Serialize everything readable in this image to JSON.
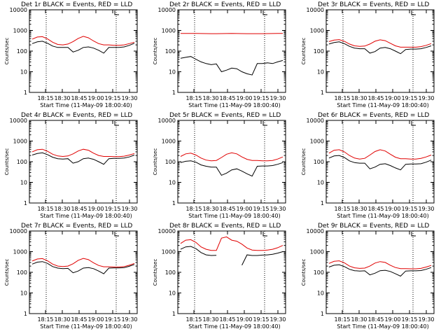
{
  "colors": {
    "events": "#000000",
    "lld": "#e00000",
    "axes": "#000000",
    "background": "#ffffff"
  },
  "chart_data": [
    {
      "type": "line",
      "title": "Det 1r BLACK = Events, RED = LLD",
      "xlabel": "Start Time (11-May-09 18:00:40)",
      "ylabel": "Counts/sec",
      "ylog": true,
      "ylim": [
        1,
        10000
      ],
      "yticks": [
        "1",
        "10",
        "100",
        "1000",
        "10000"
      ],
      "xticks": [
        "18:15",
        "18:30",
        "18:45",
        "19:00",
        "19:15",
        "19:30"
      ],
      "series": [
        {
          "name": "Events",
          "x": [
            0,
            5,
            10,
            15,
            20,
            25,
            30,
            35,
            40,
            45,
            50,
            55,
            60,
            65,
            70,
            75,
            80,
            85,
            90,
            95,
            100
          ],
          "values": [
            230,
            280,
            300,
            240,
            175,
            150,
            150,
            150,
            90,
            110,
            150,
            160,
            140,
            110,
            80,
            150,
            150,
            150,
            160,
            190,
            240
          ]
        },
        {
          "name": "LLD",
          "x": [
            0,
            5,
            10,
            15,
            20,
            25,
            30,
            35,
            40,
            45,
            50,
            55,
            60,
            65,
            70,
            75,
            80,
            85,
            90,
            95,
            100
          ],
          "values": [
            380,
            480,
            500,
            390,
            270,
            210,
            200,
            220,
            290,
            410,
            520,
            440,
            310,
            230,
            200,
            200,
            190,
            190,
            200,
            230,
            270
          ]
        }
      ]
    },
    {
      "type": "line",
      "title": "Det 2r BLACK = Events, RED = LLD",
      "xlabel": "Start Time (11-May-09 18:00:40)",
      "ylabel": "Counts/sec",
      "ylog": true,
      "ylim": [
        1,
        10000
      ],
      "yticks": [
        "1",
        "10",
        "100",
        "1000",
        "10000"
      ],
      "xticks": [
        "18:15",
        "18:30",
        "18:45",
        "19:00",
        "19:15",
        "19:30"
      ],
      "series": [
        {
          "name": "Events",
          "x": [
            0,
            5,
            10,
            15,
            20,
            25,
            30,
            35,
            40,
            45,
            50,
            55,
            60,
            65,
            70,
            75,
            80,
            85,
            90,
            95,
            100
          ],
          "values": [
            45,
            50,
            55,
            40,
            30,
            25,
            22,
            24,
            10,
            12,
            15,
            14,
            10,
            8,
            7,
            25,
            25,
            27,
            25,
            30,
            35
          ]
        },
        {
          "name": "LLD",
          "x": [
            0,
            5,
            10,
            15,
            20,
            25,
            30,
            35,
            40,
            45,
            50,
            55,
            60,
            65,
            70,
            75,
            80,
            85,
            90,
            95,
            100
          ],
          "values": [
            720,
            720,
            720,
            715,
            710,
            705,
            700,
            700,
            705,
            710,
            715,
            710,
            705,
            700,
            700,
            700,
            700,
            705,
            710,
            715,
            720
          ]
        }
      ]
    },
    {
      "type": "line",
      "title": "Det 3r BLACK = Events, RED = LLD",
      "xlabel": "Start Time (11-May-09 18:00:40)",
      "ylabel": "Counts/sec",
      "ylog": true,
      "ylim": [
        1,
        10000
      ],
      "yticks": [
        "1",
        "10",
        "100",
        "1000",
        "10000"
      ],
      "xticks": [
        "18:15",
        "18:30",
        "18:45",
        "19:00",
        "19:15",
        "19:30"
      ],
      "series": [
        {
          "name": "Events",
          "x": [
            0,
            5,
            10,
            15,
            20,
            25,
            30,
            35,
            40,
            45,
            50,
            55,
            60,
            65,
            70,
            75,
            80,
            85,
            90,
            95,
            100
          ],
          "values": [
            220,
            260,
            280,
            230,
            170,
            140,
            130,
            130,
            80,
            95,
            140,
            150,
            130,
            100,
            75,
            120,
            125,
            125,
            130,
            150,
            180
          ]
        },
        {
          "name": "LLD",
          "x": [
            0,
            5,
            10,
            15,
            20,
            25,
            30,
            35,
            40,
            45,
            50,
            55,
            60,
            65,
            70,
            75,
            80,
            85,
            90,
            95,
            100
          ],
          "values": [
            290,
            340,
            360,
            300,
            220,
            180,
            170,
            175,
            220,
            300,
            350,
            320,
            240,
            180,
            155,
            155,
            155,
            155,
            165,
            190,
            230
          ]
        }
      ]
    },
    {
      "type": "line",
      "title": "Det 4r BLACK = Events, RED = LLD",
      "xlabel": "Start Time (11-May-09 18:00:40)",
      "ylabel": "Counts/sec",
      "ylog": true,
      "ylim": [
        1,
        10000
      ],
      "yticks": [
        "1",
        "10",
        "100",
        "1000",
        "10000"
      ],
      "xticks": [
        "18:15",
        "18:30",
        "18:45",
        "19:00",
        "19:15",
        "19:30"
      ],
      "series": [
        {
          "name": "Events",
          "x": [
            0,
            5,
            10,
            15,
            20,
            25,
            30,
            35,
            40,
            45,
            50,
            55,
            60,
            65,
            70,
            75,
            80,
            85,
            90,
            95,
            100
          ],
          "values": [
            210,
            250,
            270,
            220,
            165,
            140,
            135,
            140,
            85,
            100,
            140,
            150,
            130,
            100,
            75,
            140,
            145,
            145,
            150,
            170,
            210
          ]
        },
        {
          "name": "LLD",
          "x": [
            0,
            5,
            10,
            15,
            20,
            25,
            30,
            35,
            40,
            45,
            50,
            55,
            60,
            65,
            70,
            75,
            80,
            85,
            90,
            95,
            100
          ],
          "values": [
            300,
            380,
            400,
            320,
            230,
            190,
            180,
            190,
            240,
            330,
            400,
            360,
            260,
            200,
            180,
            180,
            175,
            175,
            185,
            210,
            250
          ]
        }
      ]
    },
    {
      "type": "line",
      "title": "Det 5r BLACK = Events, RED = LLD",
      "xlabel": "Start Time (11-May-09 18:00:40)",
      "ylabel": "Counts/sec",
      "ylog": true,
      "ylim": [
        1,
        10000
      ],
      "yticks": [
        "1",
        "10",
        "100",
        "1000",
        "10000"
      ],
      "xticks": [
        "18:15",
        "18:30",
        "18:45",
        "19:00",
        "19:15",
        "19:30"
      ],
      "series": [
        {
          "name": "Events",
          "x": [
            0,
            5,
            10,
            15,
            20,
            25,
            30,
            35,
            40,
            45,
            50,
            55,
            60,
            65,
            70,
            75,
            80,
            85,
            90,
            95,
            100
          ],
          "values": [
            90,
            105,
            110,
            95,
            70,
            60,
            55,
            55,
            22,
            28,
            40,
            45,
            35,
            26,
            20,
            60,
            62,
            62,
            65,
            75,
            90
          ]
        },
        {
          "name": "LLD",
          "x": [
            0,
            5,
            10,
            15,
            20,
            25,
            30,
            35,
            40,
            45,
            50,
            55,
            60,
            65,
            70,
            75,
            80,
            85,
            90,
            95,
            100
          ],
          "values": [
            180,
            240,
            260,
            210,
            150,
            120,
            110,
            115,
            160,
            230,
            270,
            240,
            170,
            130,
            115,
            115,
            110,
            110,
            115,
            135,
            170
          ]
        }
      ]
    },
    {
      "type": "line",
      "title": "Det 6r BLACK = Events, RED = LLD",
      "xlabel": "Start Time (11-May-09 18:00:40)",
      "ylabel": "Counts/sec",
      "ylog": true,
      "ylim": [
        1,
        10000
      ],
      "yticks": [
        "1",
        "10",
        "100",
        "1000",
        "10000"
      ],
      "xticks": [
        "18:15",
        "18:30",
        "18:45",
        "19:00",
        "19:15",
        "19:30"
      ],
      "series": [
        {
          "name": "Events",
          "x": [
            0,
            5,
            10,
            15,
            20,
            25,
            30,
            35,
            40,
            45,
            50,
            55,
            60,
            65,
            70,
            75,
            80,
            85,
            90,
            95,
            100
          ],
          "values": [
            150,
            190,
            200,
            160,
            110,
            90,
            85,
            85,
            45,
            55,
            75,
            80,
            65,
            50,
            40,
            75,
            78,
            78,
            80,
            95,
            120
          ]
        },
        {
          "name": "LLD",
          "x": [
            0,
            5,
            10,
            15,
            20,
            25,
            30,
            35,
            40,
            45,
            50,
            55,
            60,
            65,
            70,
            75,
            80,
            85,
            90,
            95,
            100
          ],
          "values": [
            260,
            360,
            380,
            300,
            200,
            150,
            135,
            145,
            210,
            310,
            380,
            330,
            230,
            165,
            140,
            140,
            135,
            135,
            145,
            170,
            210
          ]
        }
      ]
    },
    {
      "type": "line",
      "title": "Det 7r BLACK = Events, RED = LLD",
      "xlabel": "Start Time (11-May-09 18:00:40)",
      "ylabel": "Counts/sec",
      "ylog": true,
      "ylim": [
        1,
        10000
      ],
      "yticks": [
        "1",
        "10",
        "100",
        "1000",
        "10000"
      ],
      "xticks": [
        "18:15",
        "18:30",
        "18:45",
        "19:00",
        "19:15",
        "19:30"
      ],
      "series": [
        {
          "name": "Events",
          "x": [
            0,
            5,
            10,
            15,
            20,
            25,
            30,
            35,
            40,
            45,
            50,
            55,
            60,
            65,
            70,
            75,
            80,
            85,
            90,
            95,
            100
          ],
          "values": [
            250,
            310,
            330,
            270,
            190,
            160,
            150,
            155,
            95,
            115,
            160,
            170,
            150,
            115,
            85,
            160,
            162,
            162,
            168,
            195,
            240
          ]
        },
        {
          "name": "LLD",
          "x": [
            0,
            5,
            10,
            15,
            20,
            25,
            30,
            35,
            40,
            45,
            50,
            55,
            60,
            65,
            70,
            75,
            80,
            85,
            90,
            95,
            100
          ],
          "values": [
            350,
            440,
            460,
            360,
            250,
            200,
            190,
            200,
            260,
            380,
            470,
            410,
            290,
            215,
            185,
            185,
            180,
            180,
            190,
            220,
            270
          ]
        }
      ]
    },
    {
      "type": "line",
      "title": "Det 8r BLACK = Events, RED = LLD",
      "xlabel": "Start Time (11-May-09 18:00:40)",
      "ylabel": "Counts/sec",
      "ylog": true,
      "ylim": [
        1,
        10000
      ],
      "yticks": [
        "1",
        "10",
        "100",
        "1000",
        "10000"
      ],
      "xticks": [
        "18:15",
        "18:30",
        "18:45",
        "19:00",
        "19:15",
        "19:30"
      ],
      "series": [
        {
          "name": "Events",
          "x": [
            0,
            5,
            10,
            15,
            20,
            25,
            30,
            35,
            40,
            45,
            50,
            55,
            60,
            65,
            70,
            75,
            80,
            85,
            90,
            95,
            100
          ],
          "values": [
            1300,
            1700,
            1800,
            1400,
            900,
            700,
            650,
            660,
            null,
            null,
            null,
            null,
            220,
            700,
            650,
            650,
            680,
            700,
            750,
            850,
            1000
          ]
        },
        {
          "name": "LLD",
          "x": [
            0,
            5,
            10,
            15,
            20,
            25,
            30,
            35,
            40,
            45,
            50,
            55,
            60,
            65,
            70,
            75,
            80,
            85,
            90,
            95,
            100
          ],
          "values": [
            2500,
            3600,
            3800,
            2800,
            1700,
            1300,
            1150,
            1150,
            4500,
            5200,
            3600,
            3200,
            2300,
            1500,
            1200,
            1150,
            1150,
            1200,
            1300,
            1550,
            2000
          ]
        }
      ]
    },
    {
      "type": "line",
      "title": "Det 9r BLACK = Events, RED = LLD",
      "xlabel": "Start Time (11-May-09 18:00:40)",
      "ylabel": "Counts/sec",
      "ylog": true,
      "ylim": [
        1,
        10000
      ],
      "yticks": [
        "1",
        "10",
        "100",
        "1000",
        "10000"
      ],
      "xticks": [
        "18:15",
        "18:30",
        "18:45",
        "19:00",
        "19:15",
        "19:30"
      ],
      "series": [
        {
          "name": "Events",
          "x": [
            0,
            5,
            10,
            15,
            20,
            25,
            30,
            35,
            40,
            45,
            50,
            55,
            60,
            65,
            70,
            75,
            80,
            85,
            90,
            95,
            100
          ],
          "values": [
            180,
            220,
            230,
            190,
            140,
            120,
            115,
            118,
            75,
            90,
            120,
            125,
            110,
            85,
            65,
            115,
            118,
            118,
            122,
            140,
            170
          ]
        },
        {
          "name": "LLD",
          "x": [
            0,
            5,
            10,
            15,
            20,
            25,
            30,
            35,
            40,
            45,
            50,
            55,
            60,
            65,
            70,
            75,
            80,
            85,
            90,
            95,
            100
          ],
          "values": [
            270,
            340,
            360,
            290,
            200,
            165,
            155,
            160,
            200,
            280,
            330,
            300,
            220,
            170,
            150,
            150,
            148,
            148,
            155,
            180,
            215
          ]
        }
      ]
    }
  ]
}
